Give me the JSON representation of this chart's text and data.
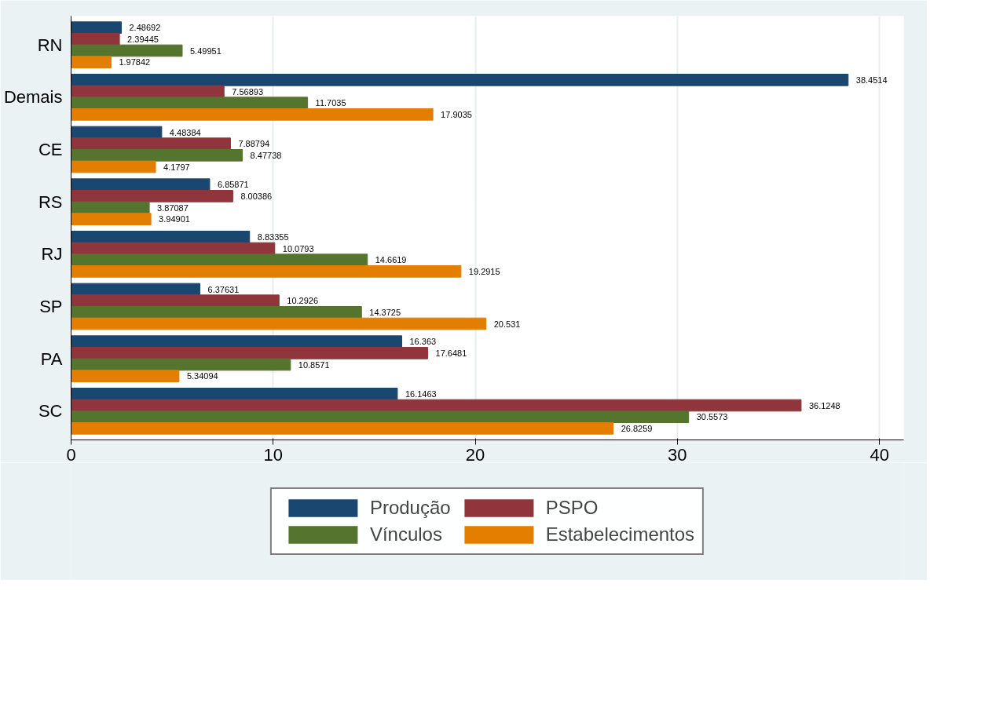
{
  "chart_data": {
    "type": "bar",
    "orientation": "horizontal",
    "categories": [
      "RN",
      "Demais",
      "CE",
      "RS",
      "RJ",
      "SP",
      "PA",
      "SC"
    ],
    "series": [
      {
        "name": "Produção",
        "color": "#1a476f",
        "values": [
          2.48692,
          38.4514,
          4.48384,
          6.85871,
          8.83355,
          6.37631,
          16.363,
          16.1463
        ]
      },
      {
        "name": "PSPO",
        "color": "#90353b",
        "values": [
          2.39445,
          7.56893,
          7.88794,
          8.00386,
          10.0793,
          10.2926,
          17.6481,
          36.1248
        ]
      },
      {
        "name": "Vínculos",
        "color": "#55752f",
        "values": [
          5.49951,
          11.7035,
          8.47738,
          3.87087,
          14.6619,
          14.3725,
          10.8571,
          30.5573
        ]
      },
      {
        "name": "Estabelecimentos",
        "color": "#e37e00",
        "values": [
          1.97842,
          17.9035,
          4.1797,
          3.94901,
          19.2915,
          20.531,
          5.34094,
          26.8259
        ]
      }
    ],
    "xlim": [
      0,
      41.2
    ],
    "xticks": [
      0,
      10,
      20,
      30,
      40
    ],
    "grid": "x",
    "legend": "bottom",
    "data_labels": true
  }
}
